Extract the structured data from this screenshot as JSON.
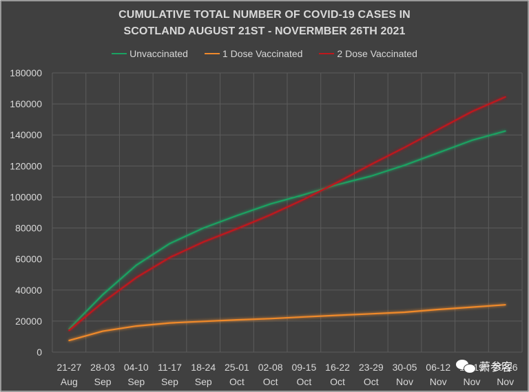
{
  "chart_data": {
    "type": "line",
    "title_lines": [
      "CUMULATIVE TOTAL NUMBER OF COVID-19 CASES IN",
      "SCOTLAND AUGUST 21ST - NOVERMBER 26TH 2021"
    ],
    "categories": [
      [
        "21-27",
        "Aug"
      ],
      [
        "28-03",
        "Sep"
      ],
      [
        "04-10",
        "Sep"
      ],
      [
        "11-17",
        "Sep"
      ],
      [
        "18-24",
        "Sep"
      ],
      [
        "25-01",
        "Oct"
      ],
      [
        "02-08",
        "Oct"
      ],
      [
        "09-15",
        "Oct"
      ],
      [
        "16-22",
        "Oct"
      ],
      [
        "23-29",
        "Oct"
      ],
      [
        "30-05",
        "Nov"
      ],
      [
        "06-12",
        "Nov"
      ],
      [
        "13-19",
        "Nov"
      ],
      [
        "20-26",
        "Nov"
      ]
    ],
    "ylim": [
      0,
      180000
    ],
    "yticks": [
      "0",
      "20000",
      "40000",
      "60000",
      "80000",
      "100000",
      "120000",
      "140000",
      "160000",
      "180000"
    ],
    "grid": true,
    "legend_position": "top",
    "series": [
      {
        "name": "Unvaccinated",
        "color": "#1aa262",
        "values": [
          15000,
          37000,
          56000,
          70000,
          80000,
          88000,
          95500,
          101500,
          108000,
          113500,
          120500,
          128500,
          136500,
          142500
        ]
      },
      {
        "name": "1 Dose Vaccinated",
        "color": "#f08a2c",
        "values": [
          7500,
          13500,
          16800,
          18800,
          19800,
          20800,
          21600,
          22700,
          23700,
          24700,
          25700,
          27500,
          29000,
          30500
        ]
      },
      {
        "name": "2 Dose Vaccinated",
        "color": "#c0171c",
        "values": [
          14000,
          32000,
          48000,
          61000,
          71000,
          79500,
          88500,
          98500,
          109500,
          121000,
          132000,
          143500,
          155000,
          164500
        ]
      }
    ]
  },
  "watermark": {
    "text": "萧参客",
    "icon": "wechat-icon"
  }
}
